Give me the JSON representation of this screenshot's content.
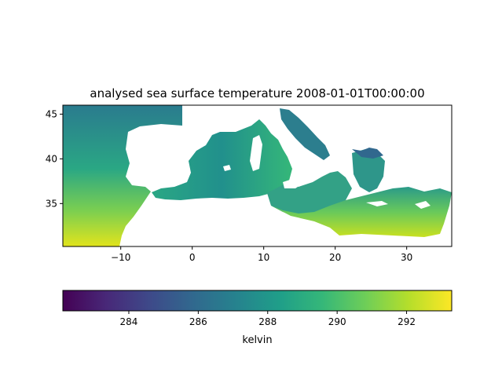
{
  "title": "analysed sea surface temperature 2008-01-01T00:00:00",
  "map": {
    "x_ticks": [
      "−10",
      "0",
      "10",
      "20",
      "30"
    ],
    "x_tick_values": [
      -10,
      0,
      10,
      20,
      30
    ],
    "y_ticks": [
      "45",
      "40",
      "35"
    ],
    "y_tick_values": [
      45,
      40,
      35
    ],
    "lon_range": [
      -18.1,
      36.3
    ],
    "lat_range": [
      30.2,
      46.0
    ],
    "colormap": "viridis"
  },
  "colorbar": {
    "label": "kelvin",
    "ticks": [
      "284",
      "286",
      "288",
      "290",
      "292"
    ],
    "tick_values": [
      284,
      286,
      288,
      290,
      292
    ],
    "range": [
      282.1,
      293.3
    ],
    "colors": [
      "#440154",
      "#482878",
      "#3e4989",
      "#31688e",
      "#26828e",
      "#1f9e89",
      "#35b779",
      "#6ece58",
      "#b5de2b",
      "#fde725"
    ]
  }
}
